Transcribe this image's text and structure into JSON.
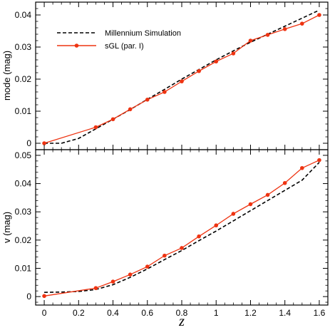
{
  "chart_data": [
    {
      "type": "line",
      "panel": "top",
      "xlabel": "",
      "ylabel": "mode (mag)",
      "xlim": [
        -0.05,
        1.65
      ],
      "ylim": [
        -0.002,
        0.044
      ],
      "yticks": [
        0,
        0.01,
        0.02,
        0.03,
        0.04
      ],
      "ytick_labels": [
        "0",
        "0.01",
        "0.02",
        "0.03",
        "0.04"
      ],
      "grid": false,
      "legend_position": "top-left",
      "series": [
        {
          "name": "Millennium Simulation",
          "style": "dashed",
          "color": "#000000",
          "x": [
            0.0,
            0.1,
            0.2,
            0.3,
            0.4,
            0.5,
            0.6,
            0.7,
            0.8,
            0.9,
            1.0,
            1.1,
            1.2,
            1.3,
            1.4,
            1.5,
            1.6
          ],
          "y": [
            0.0,
            0.0,
            0.0015,
            0.0045,
            0.0075,
            0.0105,
            0.0137,
            0.0168,
            0.02,
            0.023,
            0.026,
            0.0288,
            0.0315,
            0.034,
            0.0365,
            0.039,
            0.0415
          ]
        },
        {
          "name": "sGL (par. I)",
          "style": "solid-markers",
          "color": "#ee3311",
          "x": [
            0.0,
            0.3,
            0.4,
            0.5,
            0.6,
            0.7,
            0.8,
            0.9,
            1.0,
            1.1,
            1.2,
            1.3,
            1.4,
            1.5,
            1.6
          ],
          "y": [
            0.0,
            0.005,
            0.0075,
            0.0106,
            0.0136,
            0.016,
            0.0193,
            0.0225,
            0.0255,
            0.028,
            0.032,
            0.0338,
            0.0356,
            0.0373,
            0.04
          ]
        }
      ]
    },
    {
      "type": "line",
      "panel": "bottom",
      "xlabel": "z",
      "ylabel": "v (mag)",
      "xlim": [
        -0.05,
        1.65
      ],
      "ylim": [
        -0.003,
        0.052
      ],
      "xticks": [
        0,
        0.2,
        0.4,
        0.6,
        0.8,
        1,
        1.2,
        1.4,
        1.6
      ],
      "xtick_labels": [
        "0",
        "0.2",
        "0.4",
        "0.6",
        "0.8",
        "1",
        "1.2",
        "1.4",
        "1.6"
      ],
      "yticks": [
        0,
        0.01,
        0.02,
        0.03,
        0.04,
        0.05
      ],
      "ytick_labels": [
        "0",
        "0.01",
        "0.02",
        "0.03",
        "0.04",
        "0.05"
      ],
      "grid": false,
      "series": [
        {
          "name": "Millennium Simulation",
          "style": "dashed",
          "color": "#000000",
          "x": [
            0.0,
            0.1,
            0.2,
            0.3,
            0.4,
            0.5,
            0.6,
            0.7,
            0.8,
            0.9,
            1.0,
            1.1,
            1.2,
            1.3,
            1.4,
            1.5,
            1.6
          ],
          "y": [
            0.0015,
            0.0016,
            0.0018,
            0.0025,
            0.0042,
            0.0068,
            0.0098,
            0.0131,
            0.0163,
            0.0198,
            0.0232,
            0.0268,
            0.0304,
            0.034,
            0.0376,
            0.0412,
            0.0475
          ]
        },
        {
          "name": "sGL (par. I)",
          "style": "solid-markers",
          "color": "#ee3311",
          "x": [
            0.0,
            0.3,
            0.4,
            0.5,
            0.6,
            0.7,
            0.8,
            0.9,
            1.0,
            1.1,
            1.2,
            1.3,
            1.4,
            1.5,
            1.6
          ],
          "y": [
            0.0002,
            0.003,
            0.0053,
            0.0078,
            0.0106,
            0.0145,
            0.0172,
            0.0213,
            0.0252,
            0.0293,
            0.0327,
            0.036,
            0.0402,
            0.0455,
            0.0483
          ]
        }
      ]
    }
  ]
}
